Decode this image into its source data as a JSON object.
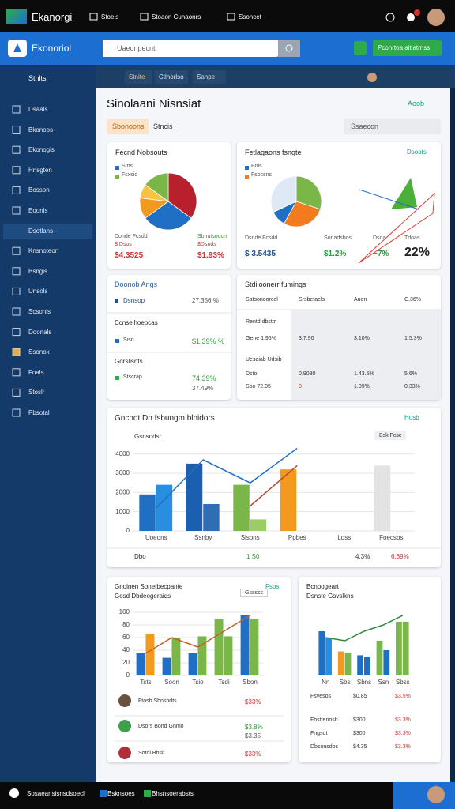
{
  "topbar": {
    "brand": "Ekanorgi",
    "menu": [
      "Stoeis",
      "Stoaon Cunaonrs",
      "Ssoncet"
    ]
  },
  "header": {
    "brand": "Ekonoriol",
    "search": "Uaeonpecnt",
    "button": "Pconrtoa aitlatrnss"
  },
  "sidebar": {
    "title": "Stnlts",
    "items": [
      "Dsaals",
      "Bkonoos",
      "Ekonogis",
      "Hnsgten",
      "Bosson",
      "Eoonls",
      "Dsotlans",
      "Knsnoteon",
      "Bsngis",
      "Unsols",
      "Scsonls",
      "Doonals",
      "Ssonok",
      "Foals",
      "Stoslr",
      "Pbsotal"
    ]
  },
  "toolbar": {
    "tabs": [
      "Stnite",
      "Ctlnorlso",
      "Sanpe"
    ]
  },
  "page": {
    "title": "Sinolaani Nisnsiat",
    "action": "Aoob",
    "tabs": [
      "Sbonoons",
      "Stncis"
    ],
    "search": "Ssaecon"
  },
  "pie_cards": [
    {
      "title": "Fecnd Nobsouts",
      "legend": [
        "Stns",
        "Fsxsio"
      ],
      "chart": {
        "type": "pie",
        "values": [
          35,
          30,
          12,
          8,
          15
        ],
        "colors": [
          "#b8202e",
          "#1f6fc4",
          "#f39a1e",
          "#f6c343",
          "#7ab648"
        ]
      },
      "stats": [
        [
          "Donde Fcsdd",
          "Sbnutsoocn"
        ],
        [
          "$ Dsos",
          "$Dsnds"
        ],
        [
          "$4.3525",
          "$1.93%"
        ]
      ]
    },
    {
      "title": "Fetlagaons fsngte",
      "action": "Dsoats",
      "legend": [
        "Bnls",
        "Fsocsns"
      ],
      "chart": {
        "type": "pie",
        "values": [
          30,
          28,
          10,
          32
        ],
        "colors": [
          "#7ab648",
          "#f37a1e",
          "#1f6fc4",
          "#dfe9f5"
        ]
      },
      "stats": [
        [
          "Dsnde Fcsdd",
          "Sonadsbos",
          "Dsoa",
          "Tdoas"
        ],
        [
          "$ 3.5435",
          "$1.2%",
          "−7%",
          "22%"
        ]
      ]
    }
  ],
  "list_card": {
    "title": "Doonob Angs",
    "row": {
      "label": "Dsnsop",
      "value": "27.356.%"
    },
    "sections": [
      {
        "title": "Ccnselhoepcas",
        "label": "Sisn",
        "value": "$1.39% %"
      },
      {
        "title": "Gorslisnts",
        "label": "Stscrap",
        "value": "74.39%",
        "sub": "37.49%"
      }
    ]
  },
  "table_card": {
    "title": "Stdiloonerr fumings",
    "header": [
      "Satsonoorcel",
      "Srsbetaels",
      "Auon",
      "C.36%"
    ],
    "notes": [
      "Rentd dbsttr",
      "Uesdiab Udsib"
    ],
    "rows": [
      [
        "Gene 1.96%",
        "3.7.90",
        "3.10%",
        "1.5.3%"
      ],
      [
        "Dsto",
        "0.9080",
        "1.43.5%",
        "5.6%"
      ],
      [
        "Soo 72.05",
        "0",
        "1.09%",
        "0.33%"
      ]
    ]
  },
  "main_card": {
    "title": "Gncnot Dn fsbungm blnidors",
    "action": "Hosb",
    "subtitle": "Gsnsodsr",
    "legend": "Bsk Fcsc",
    "chart": {
      "type": "combo",
      "categories": [
        "Uoeons",
        "Ssnby",
        "Sisons",
        "Ppbes",
        "Ldss",
        "Foecsbs"
      ],
      "ylim": [
        0,
        4400
      ],
      "yticks": [
        0,
        1000,
        2000,
        3000,
        4000
      ],
      "series": [
        {
          "type": "bar",
          "colors": [
            "#1f6fc4",
            "#1a5fb0",
            "#7ab648",
            "#f39a1e",
            null,
            "#e3e3e3"
          ],
          "values": [
            1900,
            3500,
            2400,
            3200,
            null,
            3400
          ]
        },
        {
          "type": "bar",
          "colors": [
            "#2a8ee0",
            "#2f6db5",
            "#9ccc65",
            null,
            null,
            null
          ],
          "values": [
            2400,
            1400,
            600,
            null,
            null,
            null
          ]
        },
        {
          "type": "line",
          "color": "#1f6fc4",
          "values": [
            1200,
            3700,
            2500,
            4300,
            null,
            null
          ]
        },
        {
          "type": "line",
          "color": "#b5452e",
          "values": [
            null,
            null,
            1300,
            3400,
            null,
            null
          ]
        }
      ]
    },
    "footer": [
      "Dbo",
      "1 S0",
      "4.3%",
      "6.69%"
    ]
  },
  "bottom_cards": [
    {
      "title": "Gnoinen Sonetbecpante",
      "subtitle": "Gosd Dbdeogeraids",
      "legend": "Gsssss",
      "action": "Fsbs",
      "chart": {
        "type": "combo",
        "categories": [
          "Tsts",
          "Soon",
          "Tsio",
          "Tsdi",
          "Sbon"
        ],
        "ylim": [
          0,
          100
        ],
        "yticks": [
          0,
          20,
          40,
          60,
          80,
          100
        ],
        "series": [
          {
            "type": "bar",
            "colors": [
              "#1f6fc4",
              "#1f6fc4",
              "#1f6fc4",
              "#7ab648",
              "#1f6fc4"
            ],
            "values": [
              35,
              28,
              35,
              90,
              95
            ]
          },
          {
            "type": "bar",
            "colors": [
              "#f39a1e",
              "#7ab648",
              "#7ab648",
              "#7ab648",
              "#7ab648"
            ],
            "values": [
              65,
              60,
              62,
              62,
              90
            ]
          },
          {
            "type": "line",
            "color": "#c0642a",
            "values": [
              35,
              60,
              45,
              70,
              95
            ]
          }
        ]
      },
      "rows": [
        {
          "name": "Ftosb Sbnsbdts",
          "value": "$33%"
        },
        {
          "name": "Dsors Bond Gnmo",
          "value": "$3.8%",
          "sub": "$3.35"
        },
        {
          "name": "Sotol Bhsit",
          "value": "$33%"
        }
      ]
    },
    {
      "title": "Bcnbogeart",
      "subtitle": "Dsnste Gsvslkns",
      "chart": {
        "type": "combo",
        "categories": [
          "Nn",
          "Sbs",
          "Sbns",
          "Ssn",
          "Sbss"
        ],
        "ylim": [
          0,
          100
        ],
        "series": [
          {
            "type": "bar",
            "colors": [
              "#1f6fc4",
              "#f39a1e",
              "#1f6fc4",
              "#7ab648",
              "#7ab648"
            ],
            "values": [
              70,
              38,
              32,
              55,
              85
            ]
          },
          {
            "type": "bar",
            "colors": [
              "#2a8ee0",
              "#7ab648",
              "#1f6fc4",
              "#1f6fc4",
              "#7ab648"
            ],
            "values": [
              60,
              36,
              30,
              40,
              85
            ]
          },
          {
            "type": "line",
            "color": "#2e8b3e",
            "values": [
              60,
              55,
              70,
              80,
              95
            ]
          }
        ]
      },
      "rows": [
        [
          "Fsvesos",
          "$0.85",
          "$3.5%"
        ],
        [
          "Fhsttenosh",
          "$300",
          "$3.3%"
        ],
        [
          "Fngsot",
          "$300",
          "$3.3%"
        ],
        [
          "Dbsonsdos",
          "$4.35",
          "$3.3%"
        ]
      ]
    }
  ],
  "taskbar": [
    "Sosaeansisnsdsoecl",
    "Bsknsoes",
    "Bhsnsoerabsts"
  ]
}
